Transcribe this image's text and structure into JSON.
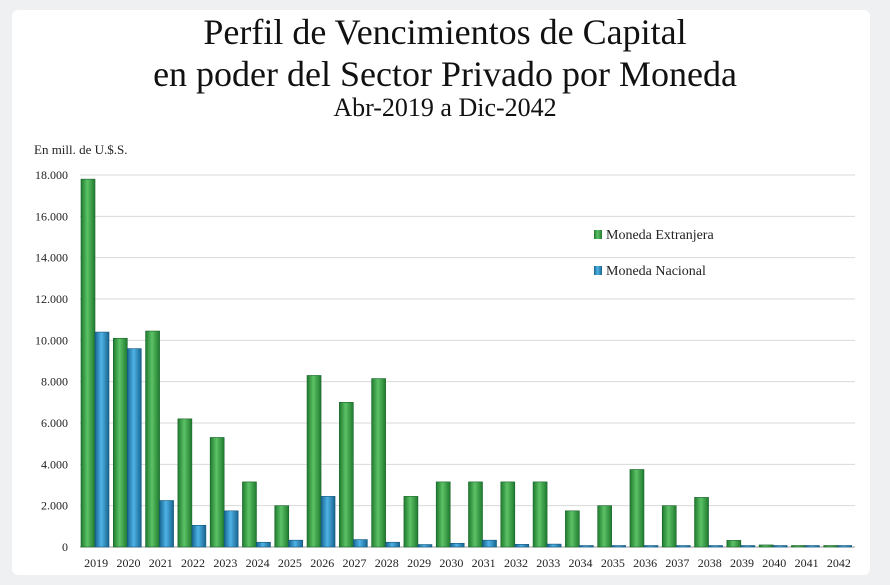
{
  "chart_data": {
    "type": "bar",
    "title_line1": "Perfil de Vencimientos de Capital",
    "title_line2": "en poder del Sector Privado por Moneda",
    "subtitle": "Abr-2019 a Dic-2042",
    "ylabel": "En mill. de U.$.S.",
    "xlabel": "",
    "ylim": [
      0,
      18000
    ],
    "yticks": [
      0,
      2000,
      4000,
      6000,
      8000,
      10000,
      12000,
      14000,
      16000,
      18000
    ],
    "ytick_labels": [
      "0",
      "2.000",
      "4.000",
      "6.000",
      "8.000",
      "10.000",
      "12.000",
      "14.000",
      "16.000",
      "18.000"
    ],
    "grid": true,
    "legend_position": "top-right",
    "categories": [
      "2019",
      "2020",
      "2021",
      "2022",
      "2023",
      "2024",
      "2025",
      "2026",
      "2027",
      "2028",
      "2029",
      "2030",
      "2031",
      "2032",
      "2033",
      "2034",
      "2035",
      "2036",
      "2037",
      "2038",
      "2039",
      "2040",
      "2041",
      "2042"
    ],
    "series": [
      {
        "name": "Moneda Extranjera",
        "color": "#3aa84a",
        "values": [
          17800,
          10100,
          10450,
          6200,
          5300,
          3150,
          2000,
          8300,
          7000,
          8150,
          2450,
          3150,
          3150,
          3150,
          3150,
          1750,
          2000,
          3750,
          2000,
          2400,
          320,
          100,
          40,
          40
        ]
      },
      {
        "name": "Moneda Nacional",
        "color": "#2b8fc6",
        "values": [
          10400,
          9600,
          2250,
          1050,
          1750,
          230,
          330,
          2450,
          360,
          230,
          120,
          180,
          330,
          130,
          140,
          50,
          50,
          50,
          50,
          50,
          20,
          20,
          20,
          20
        ]
      }
    ]
  }
}
